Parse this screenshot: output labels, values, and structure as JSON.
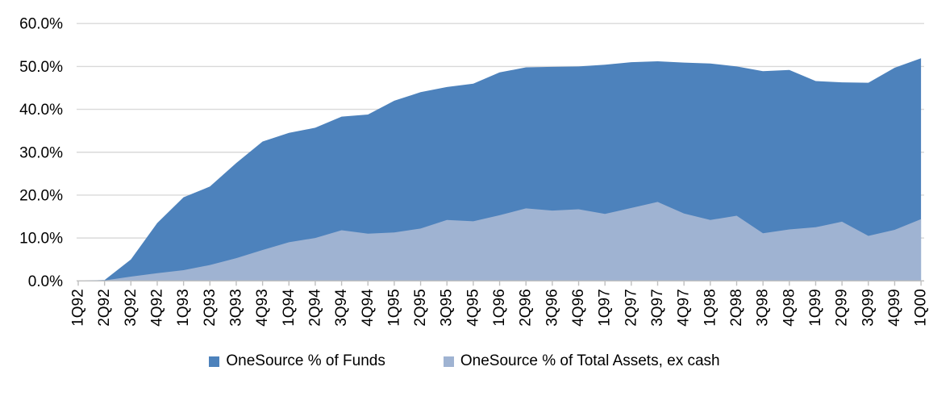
{
  "chart_data": {
    "type": "area",
    "title": "",
    "xlabel": "",
    "ylabel": "",
    "ylim": [
      0,
      60
    ],
    "grid": true,
    "legend_position": "bottom",
    "gridline_color": "#d9d9d9",
    "axis_color": "#bfbfbf",
    "text_color": "#000000",
    "y_tick_labels": [
      "0.0%",
      "10.0%",
      "20.0%",
      "30.0%",
      "40.0%",
      "50.0%",
      "60.0%"
    ],
    "y_tick_values": [
      0,
      10,
      20,
      30,
      40,
      50,
      60
    ],
    "categories": [
      "1Q92",
      "2Q92",
      "3Q92",
      "4Q92",
      "1Q93",
      "2Q93",
      "3Q93",
      "4Q93",
      "1Q94",
      "2Q94",
      "3Q94",
      "4Q94",
      "1Q95",
      "2Q95",
      "3Q95",
      "4Q95",
      "1Q96",
      "2Q96",
      "3Q96",
      "4Q96",
      "1Q97",
      "2Q97",
      "3Q97",
      "4Q97",
      "1Q98",
      "2Q98",
      "3Q98",
      "4Q98",
      "1Q99",
      "2Q99",
      "3Q99",
      "4Q99",
      "1Q00"
    ],
    "series": [
      {
        "name": "OneSource % of Funds",
        "color": "#4d82bc",
        "values": [
          0.0,
          0.2,
          5.0,
          13.5,
          19.5,
          22.0,
          27.5,
          32.5,
          34.5,
          35.7,
          38.3,
          38.8,
          42.0,
          44.0,
          45.2,
          46.0,
          48.6,
          49.8,
          49.9,
          50.0,
          50.4,
          51.0,
          51.2,
          50.9,
          50.7,
          50.0,
          48.9,
          49.2,
          46.6,
          46.3,
          46.2,
          49.7,
          51.9
        ]
      },
      {
        "name": "OneSource % of Total Assets, ex cash",
        "color": "#9fb3d2",
        "values": [
          0.0,
          0.1,
          1.0,
          1.8,
          2.5,
          3.7,
          5.3,
          7.2,
          9.0,
          10.0,
          11.8,
          11.0,
          11.3,
          12.2,
          14.2,
          13.9,
          15.3,
          16.9,
          16.4,
          16.7,
          15.6,
          17.0,
          18.4,
          15.7,
          14.2,
          15.2,
          11.1,
          12.0,
          12.5,
          13.8,
          10.5,
          11.9,
          14.4
        ]
      }
    ]
  },
  "legend": {
    "items": [
      {
        "label": "OneSource % of Funds",
        "color": "#4d82bc"
      },
      {
        "label": "OneSource % of Total Assets, ex cash",
        "color": "#9fb3d2"
      }
    ]
  }
}
